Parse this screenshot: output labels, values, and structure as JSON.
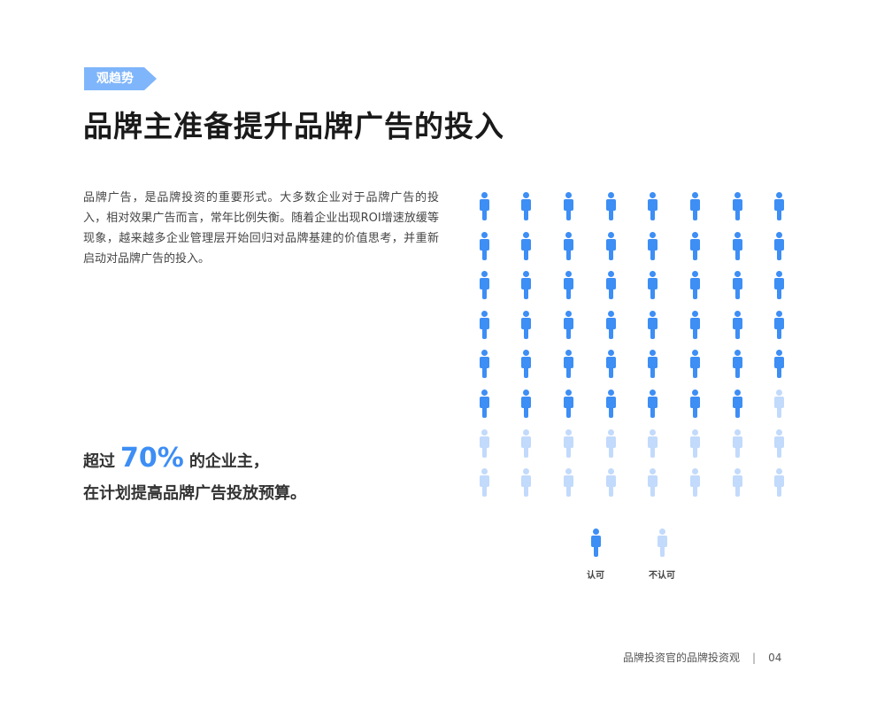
{
  "tag": "观趋势",
  "title": "品牌主准备提升品牌广告的投入",
  "paragraph": "品牌广告，是品牌投资的重要形式。大多数企业对于品牌广告的投入，相对效果广告而言，常年比例失衡。随着企业出现ROI增速放缓等现象，越来越多企业管理层开始回归对品牌基建的价值思考，并重新启动对品牌广告的投入。",
  "highlight": {
    "prefix": "超过",
    "value": "70%",
    "suffix": "的企业主，",
    "line2": "在计划提高品牌广告投放预算。"
  },
  "pictogram": {
    "total": 64,
    "columns": 8,
    "approve_count": 47,
    "colors": {
      "approve": "#3d8ef5",
      "disapprove": "#c2dafb"
    }
  },
  "legend": [
    {
      "label": "认可",
      "color": "#3d8ef5"
    },
    {
      "label": "不认可",
      "color": "#c2dafb"
    }
  ],
  "footer": {
    "text": "品牌投资官的品牌投资观",
    "page": "04"
  }
}
